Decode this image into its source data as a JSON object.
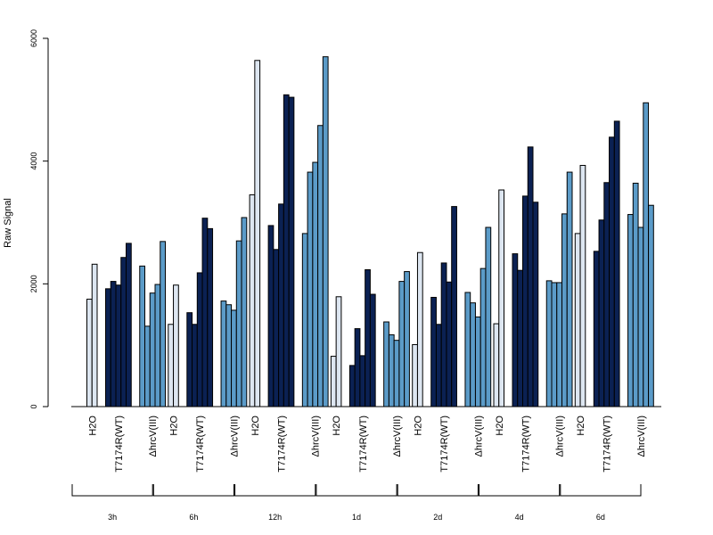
{
  "chart_data": {
    "type": "bar",
    "ylabel": "Raw Signal",
    "ylim": [
      0,
      6000
    ],
    "yticks": [
      0,
      2000,
      4000,
      6000
    ],
    "ytick_labels": [
      "0",
      "2000",
      "4000",
      "6000"
    ],
    "treatments": [
      {
        "label": "H2O",
        "color": "#dde6f1"
      },
      {
        "label": "T7174R(WT)",
        "color": "#0b2153"
      },
      {
        "label": "ΔhrcV(III)",
        "color": "#5b9bc8"
      }
    ],
    "time_points": [
      {
        "label": "3h",
        "groups": [
          [
            1750,
            2320
          ],
          [
            1920,
            2040,
            1980,
            2430,
            2660
          ],
          [
            2290,
            1310,
            1850,
            1990,
            2690
          ]
        ]
      },
      {
        "label": "6h",
        "groups": [
          [
            1340,
            1980
          ],
          [
            1530,
            1340,
            2180,
            3070,
            2900
          ],
          [
            1720,
            1660,
            1570,
            2700,
            3080
          ]
        ]
      },
      {
        "label": "12h",
        "groups": [
          [
            3450,
            5640
          ],
          [
            2950,
            2560,
            3300,
            5080,
            5040
          ],
          [
            2820,
            3820,
            3980,
            4580,
            5700
          ]
        ]
      },
      {
        "label": "1d",
        "groups": [
          [
            820,
            1790
          ],
          [
            670,
            1270,
            830,
            2230,
            1830
          ],
          [
            1380,
            1170,
            1080,
            2040,
            2200
          ]
        ]
      },
      {
        "label": "2d",
        "groups": [
          [
            1010,
            2510
          ],
          [
            1780,
            1340,
            2340,
            2030,
            3260
          ],
          [
            1860,
            1690,
            1460,
            2250,
            2920
          ]
        ]
      },
      {
        "label": "4d",
        "groups": [
          [
            1350,
            3530
          ],
          [
            2490,
            2220,
            3430,
            4230,
            3330
          ],
          [
            2050,
            2020,
            2020,
            3140,
            3820
          ]
        ]
      },
      {
        "label": "6d",
        "groups": [
          [
            2820,
            3930
          ],
          [
            2530,
            3040,
            3650,
            4390,
            4650
          ],
          [
            3130,
            3640,
            2920,
            4950,
            3280
          ]
        ]
      }
    ]
  }
}
